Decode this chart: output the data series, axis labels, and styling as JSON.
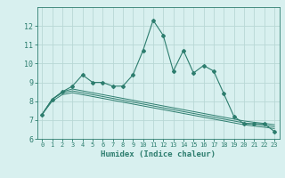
{
  "x": [
    0,
    1,
    2,
    3,
    4,
    5,
    6,
    7,
    8,
    9,
    10,
    11,
    12,
    13,
    14,
    15,
    16,
    17,
    18,
    19,
    20,
    21,
    22,
    23
  ],
  "main_line": [
    7.3,
    8.1,
    8.5,
    8.8,
    9.4,
    9.0,
    9.0,
    8.8,
    8.8,
    9.4,
    10.7,
    12.3,
    11.5,
    9.6,
    10.7,
    9.5,
    9.9,
    9.6,
    8.4,
    7.2,
    6.8,
    6.8,
    6.8,
    6.4
  ],
  "smooth1": [
    7.3,
    8.1,
    8.5,
    8.65,
    8.55,
    8.45,
    8.35,
    8.25,
    8.15,
    8.05,
    7.95,
    7.85,
    7.75,
    7.65,
    7.55,
    7.45,
    7.35,
    7.25,
    7.15,
    7.05,
    6.95,
    6.88,
    6.82,
    6.75
  ],
  "smooth2": [
    7.3,
    8.1,
    8.45,
    8.55,
    8.45,
    8.35,
    8.25,
    8.15,
    8.05,
    7.95,
    7.85,
    7.75,
    7.65,
    7.55,
    7.45,
    7.35,
    7.25,
    7.15,
    7.05,
    6.95,
    6.85,
    6.78,
    6.72,
    6.65
  ],
  "smooth3": [
    7.3,
    8.0,
    8.35,
    8.45,
    8.35,
    8.25,
    8.15,
    8.05,
    7.95,
    7.85,
    7.75,
    7.65,
    7.55,
    7.45,
    7.35,
    7.25,
    7.15,
    7.05,
    6.95,
    6.85,
    6.75,
    6.68,
    6.62,
    6.55
  ],
  "color": "#2d7d6e",
  "bg_color": "#d8f0ef",
  "grid_color": "#b8d8d5",
  "ylim": [
    6,
    13
  ],
  "xlim": [
    -0.5,
    23.5
  ],
  "yticks": [
    6,
    7,
    8,
    9,
    10,
    11,
    12
  ],
  "xticks": [
    0,
    1,
    2,
    3,
    4,
    5,
    6,
    7,
    8,
    9,
    10,
    11,
    12,
    13,
    14,
    15,
    16,
    17,
    18,
    19,
    20,
    21,
    22,
    23
  ],
  "xlabel": "Humidex (Indice chaleur)"
}
